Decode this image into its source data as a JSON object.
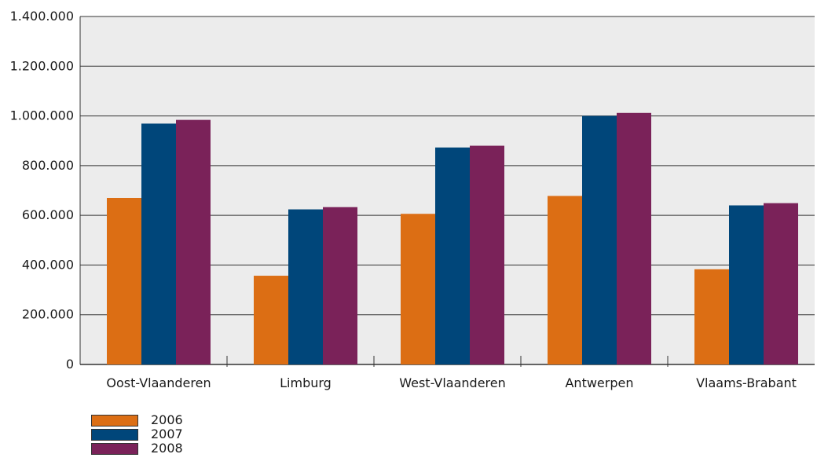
{
  "chart_data": {
    "type": "bar",
    "categories": [
      "Oost-Vlaanderen",
      "Limburg",
      "West-Vlaanderen",
      "Antwerpen",
      "Vlaams-Brabant"
    ],
    "series": [
      {
        "name": "2006",
        "color": "#dc6e14",
        "values": [
          670000,
          357000,
          606000,
          678000,
          383000
        ]
      },
      {
        "name": "2007",
        "color": "#00467a",
        "values": [
          969000,
          624000,
          873000,
          1000000,
          640000
        ]
      },
      {
        "name": "2008",
        "color": "#7a2259",
        "values": [
          984000,
          633000,
          880000,
          1012000,
          649000
        ]
      }
    ],
    "yticks": [
      "0",
      "200.000",
      "400.000",
      "600.000",
      "800.000",
      "1.000.000",
      "1.200.000",
      "1.400.000"
    ],
    "ylim": [
      0,
      1400000
    ],
    "title": "",
    "xlabel": "",
    "ylabel": "",
    "grid": true,
    "legend_position": "bottom-left",
    "plot_background": "#ececec"
  }
}
